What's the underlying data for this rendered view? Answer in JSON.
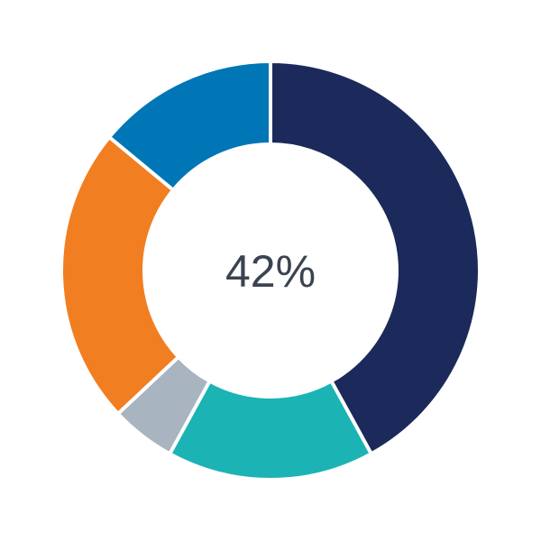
{
  "chart_data": {
    "type": "pie",
    "variant": "donut",
    "center_label": "42%",
    "slices": [
      {
        "value": 42,
        "color": "#1b2a5a"
      },
      {
        "value": 16,
        "color": "#1cb3b5"
      },
      {
        "value": 5,
        "color": "#a9b4c1"
      },
      {
        "value": 23,
        "color": "#f17e21"
      },
      {
        "value": 14,
        "color": "#0076b6"
      }
    ],
    "start_angle": "top",
    "direction": "clockwise",
    "legend": "none"
  }
}
